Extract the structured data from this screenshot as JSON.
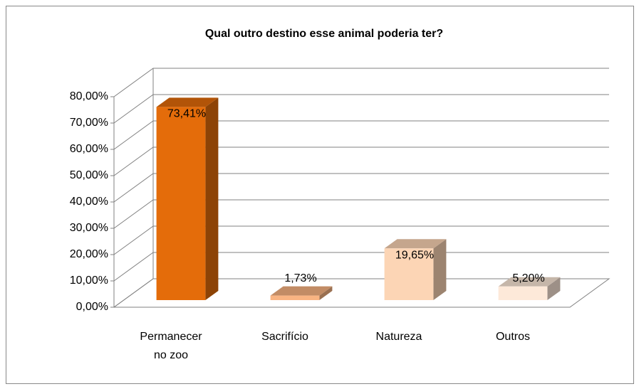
{
  "chart_data": {
    "type": "bar3d",
    "title": "Qual outro destino esse animal poderia ter?",
    "categories": [
      "Permanecer no zoo",
      "Sacrifício",
      "Natureza",
      "Outros"
    ],
    "values": [
      73.41,
      1.73,
      19.65,
      5.2
    ],
    "value_labels": [
      "73,41%",
      "1,73%",
      "19,65%",
      "5,20%"
    ],
    "colors": [
      "#e46c0a",
      "#f9b482",
      "#fcd5b5",
      "#fde9d9"
    ],
    "ylim": [
      0,
      80
    ],
    "yticks": [
      {
        "value": 0,
        "label": "0,00%"
      },
      {
        "value": 10,
        "label": "10,00%"
      },
      {
        "value": 20,
        "label": "20,00%"
      },
      {
        "value": 30,
        "label": "30,00%"
      },
      {
        "value": 40,
        "label": "40,00%"
      },
      {
        "value": 50,
        "label": "50,00%"
      },
      {
        "value": 60,
        "label": "60,00%"
      },
      {
        "value": 70,
        "label": "70,00%"
      },
      {
        "value": 80,
        "label": "80,00%"
      }
    ],
    "grid": true
  }
}
